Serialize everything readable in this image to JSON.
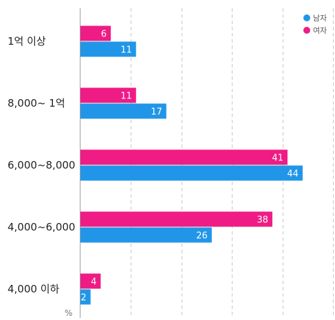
{
  "chart_data": {
    "type": "bar",
    "orientation": "horizontal",
    "categories": [
      "1억 이상",
      "8,000~ 1억",
      "6,000~8,000",
      "4,000~6,000",
      "4,000 이하"
    ],
    "series": [
      {
        "name": "여자",
        "color": "#ee1c84",
        "values": [
          6,
          11,
          41,
          38,
          4
        ]
      },
      {
        "name": "남자",
        "color": "#2196e8",
        "values": [
          11,
          17,
          44,
          26,
          2
        ]
      }
    ],
    "legend": [
      "남자",
      "여자"
    ],
    "legend_position": "top-right",
    "xlim": [
      0,
      50
    ],
    "grid": true,
    "unit": "%"
  }
}
